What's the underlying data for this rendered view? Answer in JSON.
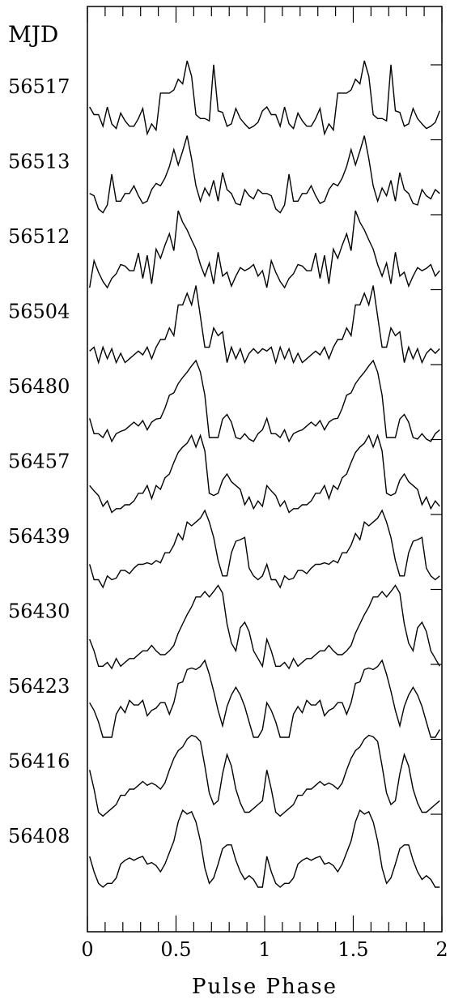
{
  "chart_data": {
    "type": "line",
    "title": "",
    "xlabel": "Pulse Phase",
    "ylabel": "MJD",
    "xlim": [
      0,
      2
    ],
    "x_ticks": [
      0,
      0.5,
      1,
      1.5,
      2
    ],
    "x_tick_labels": [
      "0",
      "0.5",
      "1",
      "1.5",
      "2"
    ],
    "y_tick_labels_note": "profiles stacked vertically, labeled by MJD",
    "phase_bins_per_cycle": 40,
    "series": [
      {
        "name": "56517",
        "values": [
          0.4,
          0.3,
          0.3,
          0.15,
          0.4,
          0.18,
          0.12,
          0.32,
          0.22,
          0.15,
          0.15,
          0.25,
          0.38,
          0.05,
          0.18,
          0.1,
          0.58,
          0.58,
          0.58,
          0.62,
          0.76,
          0.7,
          1.0,
          0.8,
          0.3,
          0.25,
          0.25,
          0.22,
          0.95,
          0.35,
          0.33,
          0.15,
          0.18,
          0.38,
          0.25,
          0.18,
          0.12,
          0.15,
          0.2,
          0.35
        ]
      },
      {
        "name": "56513",
        "values": [
          0.25,
          0.22,
          0.05,
          0.0,
          0.1,
          0.5,
          0.15,
          0.15,
          0.25,
          0.25,
          0.35,
          0.22,
          0.12,
          0.15,
          0.3,
          0.38,
          0.35,
          0.45,
          0.6,
          0.82,
          0.62,
          0.8,
          1.0,
          0.7,
          0.35,
          0.15,
          0.32,
          0.22,
          0.42,
          0.15,
          0.52,
          0.3,
          0.25,
          0.12,
          0.1,
          0.3,
          0.22,
          0.18,
          0.3,
          0.25
        ]
      },
      {
        "name": "56512",
        "values": [
          0.0,
          0.35,
          0.2,
          0.08,
          0.0,
          0.12,
          0.18,
          0.3,
          0.28,
          0.22,
          0.22,
          0.45,
          0.12,
          0.42,
          0.05,
          0.5,
          0.38,
          0.55,
          0.7,
          0.48,
          1.0,
          0.85,
          0.75,
          0.62,
          0.5,
          0.3,
          0.15,
          0.32,
          0.05,
          0.46,
          0.15,
          0.2,
          0.02,
          0.15,
          0.26,
          0.22,
          0.25,
          0.3,
          0.15,
          0.22
        ]
      },
      {
        "name": "56504",
        "values": [
          0.15,
          0.2,
          0.0,
          0.2,
          0.05,
          0.18,
          0.0,
          0.12,
          0.0,
          0.05,
          0.1,
          0.15,
          0.1,
          0.2,
          0.05,
          0.2,
          0.3,
          0.3,
          0.45,
          0.35,
          0.75,
          0.75,
          0.9,
          0.75,
          1.0,
          0.6,
          0.2,
          0.2,
          0.45,
          0.35,
          0.4,
          0.0,
          0.2,
          0.05,
          0.18,
          0.0,
          0.12,
          0.18,
          0.12,
          0.18
        ]
      },
      {
        "name": "56480",
        "values": [
          0.25,
          0.05,
          0.05,
          0.0,
          0.1,
          -0.05,
          0.05,
          0.08,
          0.1,
          0.15,
          0.2,
          0.15,
          0.22,
          0.1,
          0.2,
          0.24,
          0.25,
          0.38,
          0.55,
          0.58,
          0.7,
          0.78,
          0.85,
          0.93,
          1.0,
          0.85,
          0.55,
          0.0,
          0.0,
          0.0,
          0.24,
          0.3,
          0.2,
          0.0,
          -0.02,
          0.05,
          -0.02,
          -0.05,
          0.05,
          0.1
        ]
      },
      {
        "name": "56457",
        "values": [
          0.35,
          0.28,
          0.22,
          0.08,
          0.15,
          0.0,
          0.05,
          0.05,
          0.1,
          0.1,
          0.15,
          0.25,
          0.25,
          0.35,
          0.18,
          0.35,
          0.3,
          0.45,
          0.5,
          0.65,
          0.78,
          0.85,
          0.9,
          1.0,
          0.85,
          1.0,
          0.8,
          0.25,
          0.22,
          0.25,
          0.42,
          0.5,
          0.4,
          0.35,
          0.3,
          0.1,
          0.2,
          0.05,
          0.15,
          0.08
        ]
      },
      {
        "name": "56439",
        "values": [
          0.3,
          0.1,
          0.1,
          0.0,
          0.15,
          0.1,
          0.12,
          0.22,
          0.22,
          0.18,
          0.25,
          0.3,
          0.3,
          0.32,
          0.3,
          0.35,
          0.32,
          0.45,
          0.45,
          0.55,
          0.7,
          0.62,
          0.85,
          0.8,
          0.85,
          0.9,
          1.0,
          0.85,
          0.65,
          0.35,
          0.15,
          0.15,
          0.45,
          0.6,
          0.62,
          0.65,
          0.25,
          0.15,
          0.1,
          0.15
        ]
      },
      {
        "name": "56430",
        "values": [
          0.3,
          0.15,
          -0.05,
          -0.05,
          0.0,
          -0.08,
          0.05,
          -0.05,
          0.0,
          0.05,
          0.05,
          0.1,
          0.15,
          0.15,
          0.22,
          0.15,
          0.1,
          0.1,
          0.15,
          0.22,
          0.38,
          0.5,
          0.62,
          0.72,
          0.85,
          0.85,
          0.92,
          0.85,
          0.92,
          1.0,
          0.9,
          0.5,
          0.25,
          0.15,
          0.45,
          0.52,
          0.4,
          0.15,
          0.05,
          -0.05
        ]
      },
      {
        "name": "56423",
        "values": [
          0.45,
          0.35,
          0.2,
          0.0,
          0.0,
          0.0,
          0.3,
          0.4,
          0.32,
          0.48,
          0.42,
          0.42,
          0.48,
          0.28,
          0.35,
          0.38,
          0.45,
          0.45,
          0.3,
          0.45,
          0.7,
          0.72,
          0.88,
          0.9,
          0.88,
          0.92,
          1.0,
          0.82,
          0.6,
          0.35,
          0.15,
          0.4,
          0.55,
          0.65,
          0.55,
          0.4,
          0.2,
          0.0,
          0.0,
          0.1
        ]
      },
      {
        "name": "56416",
        "values": [
          0.55,
          0.3,
          0.0,
          -0.05,
          0.0,
          0.05,
          0.1,
          0.22,
          0.22,
          0.3,
          0.3,
          0.35,
          0.4,
          0.35,
          0.38,
          0.35,
          0.3,
          0.38,
          0.55,
          0.7,
          0.8,
          0.85,
          0.95,
          1.0,
          0.98,
          0.92,
          0.6,
          0.25,
          0.1,
          0.15,
          0.5,
          0.75,
          0.6,
          0.3,
          0.12,
          0.0,
          0.0,
          0.05,
          0.1,
          0.15
        ]
      },
      {
        "name": "56408",
        "values": [
          0.4,
          0.2,
          0.05,
          0.0,
          0.05,
          0.05,
          0.12,
          0.3,
          0.35,
          0.38,
          0.35,
          0.38,
          0.4,
          0.3,
          0.32,
          0.28,
          0.2,
          0.3,
          0.45,
          0.6,
          0.85,
          1.0,
          0.95,
          0.98,
          0.85,
          0.6,
          0.25,
          0.05,
          0.12,
          0.3,
          0.5,
          0.55,
          0.55,
          0.35,
          0.2,
          0.1,
          0.15,
          0.1,
          0.0,
          0.0
        ]
      }
    ]
  }
}
